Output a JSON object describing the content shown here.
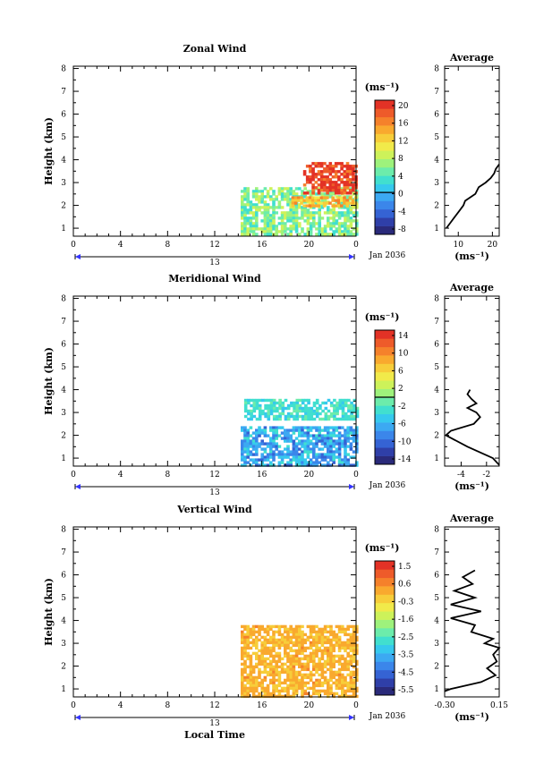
{
  "colors": {
    "palette": [
      "#2a2a7a",
      "#2f3fa8",
      "#3563d4",
      "#3b86ea",
      "#3ca9f2",
      "#36c9ee",
      "#41dfcf",
      "#6cecab",
      "#9ef27c",
      "#cdf25a",
      "#f1ea4a",
      "#f7cd3a",
      "#f9a92e",
      "#f5812b",
      "#ee5b2a",
      "#e33226"
    ]
  },
  "chart_data": [
    {
      "type": "heatmap",
      "title": "Zonal Wind",
      "ylabel": "Height (km)",
      "xlabel": "",
      "x_ticks": [
        "0",
        "4",
        "8",
        "12",
        "16",
        "20",
        "0"
      ],
      "xlim": [
        0,
        24
      ],
      "y_ticks": [
        "1",
        "2",
        "3",
        "4",
        "5",
        "6",
        "7",
        "8"
      ],
      "ylim": [
        0.65,
        8.1
      ],
      "date_bar_label": "13",
      "date_label": "Jan 2036",
      "colorbar": {
        "unit": "(ms⁻¹)",
        "tick_labels": [
          "20",
          "16",
          "12",
          "8",
          "4",
          "0",
          "-4",
          "-8"
        ],
        "range": [
          -10,
          22
        ],
        "zero_line": 0
      },
      "data_start_hour": 14.2,
      "data_region": [
        {
          "x": [
            14.2,
            24
          ],
          "y": [
            0.7,
            2.8
          ],
          "value": 6,
          "spread": 4
        },
        {
          "x": [
            18.5,
            24
          ],
          "y": [
            2.0,
            2.4
          ],
          "value": 14,
          "spread": 3
        },
        {
          "x": [
            19.5,
            24
          ],
          "y": [
            2.5,
            3.9
          ],
          "value": 20,
          "spread": 3
        }
      ],
      "profile": {
        "title": "Average",
        "xlabel": "(ms⁻¹)",
        "x_ticks": [
          "10",
          "20"
        ],
        "xlim": [
          6,
          22
        ],
        "y": [
          1.0,
          1.2,
          1.5,
          1.8,
          2.0,
          2.2,
          2.5,
          2.8,
          3.0,
          3.2,
          3.4,
          3.6,
          3.8
        ],
        "x": [
          6.5,
          7.5,
          9,
          10.5,
          11.5,
          12,
          15,
          16,
          18,
          19.5,
          20.5,
          21,
          22
        ]
      }
    },
    {
      "type": "heatmap",
      "title": "Meridional Wind",
      "ylabel": "Height (km)",
      "xlabel": "",
      "x_ticks": [
        "0",
        "4",
        "8",
        "12",
        "16",
        "20",
        "0"
      ],
      "xlim": [
        0,
        24
      ],
      "y_ticks": [
        "1",
        "2",
        "3",
        "4",
        "5",
        "6",
        "7",
        "8"
      ],
      "ylim": [
        0.65,
        8.1
      ],
      "date_bar_label": "13",
      "date_label": "Jan 2036",
      "colorbar": {
        "unit": "(ms⁻¹)",
        "tick_labels": [
          "14",
          "10",
          "6",
          "2",
          "-2",
          "-6",
          "-10",
          "-14"
        ],
        "range": [
          -16,
          16
        ],
        "zero_line": 0
      },
      "data_start_hour": 14.2,
      "data_region": [
        {
          "x": [
            14.2,
            24
          ],
          "y": [
            0.7,
            2.4
          ],
          "value": -7,
          "spread": 4
        },
        {
          "x": [
            14.5,
            24
          ],
          "y": [
            2.7,
            3.6
          ],
          "value": -3,
          "spread": 2
        }
      ],
      "profile": {
        "title": "Average",
        "xlabel": "(ms⁻¹)",
        "x_ticks": [
          "-4",
          "-2"
        ],
        "xlim": [
          -5.3,
          -1.0
        ],
        "y": [
          0.7,
          1.0,
          1.5,
          2.0,
          2.2,
          2.5,
          2.8,
          3.0,
          3.2,
          3.4,
          3.6,
          3.8,
          4.0
        ],
        "x": [
          -1.0,
          -1.5,
          -3.5,
          -5.2,
          -4.8,
          -3.0,
          -2.5,
          -2.8,
          -3.5,
          -2.8,
          -3.2,
          -3.5,
          -3.3
        ]
      }
    },
    {
      "type": "heatmap",
      "title": "Vertical Wind",
      "ylabel": "Height (km)",
      "xlabel": "Local Time",
      "x_ticks": [
        "0",
        "4",
        "8",
        "12",
        "16",
        "20",
        "0"
      ],
      "xlim": [
        0,
        24
      ],
      "y_ticks": [
        "1",
        "2",
        "3",
        "4",
        "5",
        "6",
        "7",
        "8"
      ],
      "ylim": [
        0.65,
        8.1
      ],
      "date_bar_label": "13",
      "date_label": "Jan 2036",
      "colorbar": {
        "unit": "(ms⁻¹)",
        "tick_labels": [
          "1.5",
          "0.6",
          "-0.3",
          "-1.6",
          "-2.5",
          "-3.5",
          "-4.5",
          "-5.5"
        ],
        "range": [
          -6.1,
          2.0
        ],
        "zero_line": null
      },
      "data_start_hour": 14.2,
      "data_region": [
        {
          "x": [
            14.2,
            24
          ],
          "y": [
            0.7,
            3.8
          ],
          "value": 0.1,
          "spread": 0.4
        }
      ],
      "profile": {
        "title": "Average",
        "xlabel": "(ms⁻¹)",
        "x_ticks": [
          "-0.30",
          "0.15"
        ],
        "xlim": [
          -0.3,
          0.15
        ],
        "y": [
          0.9,
          1.0,
          1.3,
          1.6,
          1.9,
          2.2,
          2.5,
          2.8,
          3.0,
          3.2,
          3.5,
          3.8,
          4.1,
          4.4,
          4.7,
          5.0,
          5.3,
          5.6,
          5.9,
          6.2
        ],
        "x": [
          -0.3,
          -0.25,
          0.0,
          0.12,
          0.05,
          0.13,
          0.1,
          0.15,
          0.03,
          0.1,
          -0.08,
          -0.05,
          -0.25,
          0.0,
          -0.25,
          -0.05,
          -0.22,
          -0.07,
          -0.15,
          -0.05
        ]
      }
    }
  ]
}
